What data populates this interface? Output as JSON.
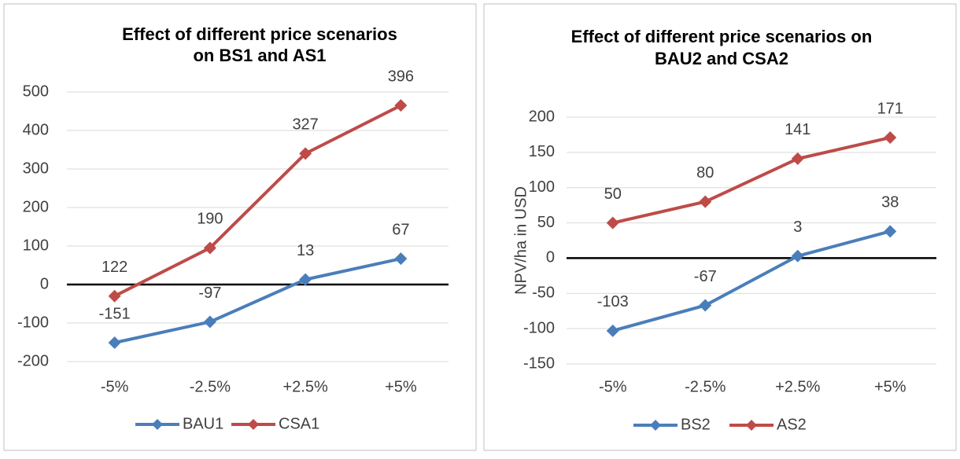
{
  "chart_data": [
    {
      "type": "line",
      "title": [
        "Effect of different price scenarios",
        "on BS1 and AS1"
      ],
      "categories": [
        "-5%",
        "-2.5%",
        "+2.5%",
        "+5%"
      ],
      "series": [
        {
          "name": "BAU1",
          "color": "#4a7ebb",
          "values": [
            -151,
            -97,
            13,
            67
          ]
        },
        {
          "name": "CSA1",
          "color": "#be4b48",
          "values": [
            -30,
            95,
            340,
            465
          ],
          "point_labels": [
            "122",
            "190",
            "327",
            "396"
          ]
        }
      ],
      "ylim": [
        -200,
        500
      ],
      "yticks": [
        -200,
        -100,
        0,
        100,
        200,
        300,
        400,
        500
      ],
      "grid": true,
      "legend": "bottom"
    },
    {
      "type": "line",
      "title": [
        "Effect of different price scenarios on",
        "BAU2 and CSA2"
      ],
      "y_label": "NPV/ha in USD",
      "categories": [
        "-5%",
        "-2.5%",
        "+2.5%",
        "+5%"
      ],
      "series": [
        {
          "name": "BS2",
          "color": "#4a7ebb",
          "values": [
            -103,
            -67,
            3,
            38
          ]
        },
        {
          "name": "AS2",
          "color": "#be4b48",
          "values": [
            50,
            80,
            141,
            171
          ]
        }
      ],
      "ylim": [
        -150,
        200
      ],
      "yticks": [
        -150,
        -100,
        -50,
        0,
        50,
        100,
        150,
        200
      ],
      "grid": true,
      "legend": "bottom"
    }
  ]
}
